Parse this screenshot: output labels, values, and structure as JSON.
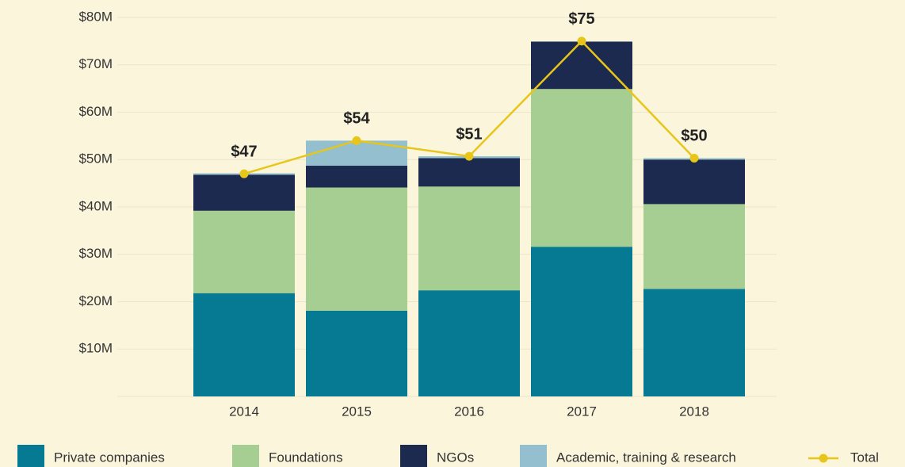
{
  "chart_data": {
    "type": "bar",
    "stacked": true,
    "categories": [
      "2014",
      "2015",
      "2016",
      "2017",
      "2018"
    ],
    "series": [
      {
        "name": "Private companies",
        "color": "#077a93",
        "values": [
          21.8,
          18.1,
          22.4,
          31.6,
          22.7
        ]
      },
      {
        "name": "Foundations",
        "color": "#a6cd92",
        "values": [
          17.4,
          26.0,
          21.9,
          33.3,
          17.9
        ]
      },
      {
        "name": "NGOs",
        "color": "#1b2a4e",
        "values": [
          7.6,
          4.6,
          6.0,
          10.0,
          9.4
        ]
      },
      {
        "name": "Academic, training & research",
        "color": "#93bfcf",
        "values": [
          0.3,
          5.3,
          0.4,
          0,
          0.3
        ]
      },
      {
        "name": "Total",
        "type": "line",
        "color": "#e8c619",
        "values": [
          47,
          54,
          50.7,
          75,
          50.3
        ],
        "value_labels": [
          "$47",
          "$54",
          "$51",
          "$75",
          "$50"
        ]
      }
    ],
    "ylim": [
      0,
      80
    ],
    "yticks": [
      {
        "value": 10,
        "label": "$10M"
      },
      {
        "value": 20,
        "label": "$20M"
      },
      {
        "value": 30,
        "label": "$30M"
      },
      {
        "value": 40,
        "label": "$40M"
      },
      {
        "value": 50,
        "label": "$50M"
      },
      {
        "value": 60,
        "label": "$60M"
      },
      {
        "value": 70,
        "label": "$70M"
      },
      {
        "value": 80,
        "label": "$80M"
      }
    ],
    "grid": true,
    "legend": "bottom"
  }
}
